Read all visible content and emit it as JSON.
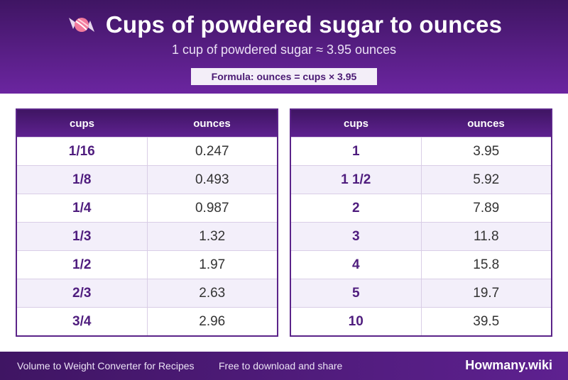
{
  "header": {
    "title": "Cups of powdered sugar to ounces",
    "subtitle": "1 cup of powdered sugar ≈ 3.95 ounces",
    "formula": "Formula: ounces = cups × 3.95",
    "icon": "candy-icon"
  },
  "tables": {
    "left": {
      "col1": "cups",
      "col2": "ounces",
      "rows": [
        {
          "cups": "1/16",
          "ounces": "0.247"
        },
        {
          "cups": "1/8",
          "ounces": "0.493"
        },
        {
          "cups": "1/4",
          "ounces": "0.987"
        },
        {
          "cups": "1/3",
          "ounces": "1.32"
        },
        {
          "cups": "1/2",
          "ounces": "1.97"
        },
        {
          "cups": "2/3",
          "ounces": "2.63"
        },
        {
          "cups": "3/4",
          "ounces": "2.96"
        }
      ]
    },
    "right": {
      "col1": "cups",
      "col2": "ounces",
      "rows": [
        {
          "cups": "1",
          "ounces": "3.95"
        },
        {
          "cups": "1 1/2",
          "ounces": "5.92"
        },
        {
          "cups": "2",
          "ounces": "7.89"
        },
        {
          "cups": "3",
          "ounces": "11.8"
        },
        {
          "cups": "4",
          "ounces": "15.8"
        },
        {
          "cups": "5",
          "ounces": "19.7"
        },
        {
          "cups": "10",
          "ounces": "39.5"
        }
      ]
    }
  },
  "footer": {
    "left": "Volume to Weight Converter for Recipes",
    "middle": "Free to download and share",
    "brand": "Howmany.wiki"
  },
  "colors": {
    "brand_dark": "#3f1563",
    "brand": "#5e2190",
    "accent_text": "#4f1d7e"
  }
}
